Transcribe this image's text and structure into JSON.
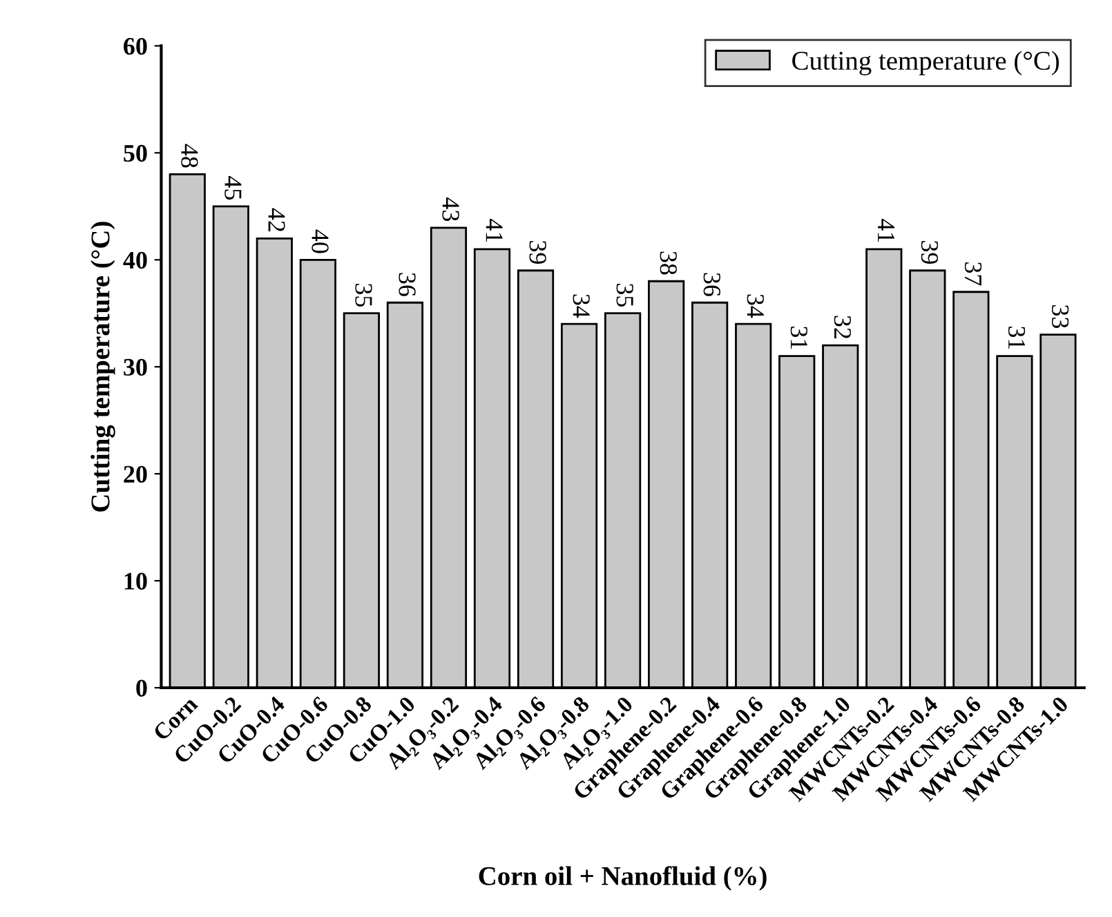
{
  "chart_data": {
    "type": "bar",
    "xlabel": "Corn oil + Nanofluid (%)",
    "ylabel": "Cutting temperature (°C)",
    "categories": [
      "Corn",
      "CuO-0.2",
      "CuO-0.4",
      "CuO-0.6",
      "CuO-0.8",
      "CuO-1.0",
      "Al₂O₃-0.2",
      "Al₂O₃-0.4",
      "Al₂O₃-0.6",
      "Al₂O₃-0.8",
      "Al₂O₃-1.0",
      "Graphene-0.2",
      "Graphene-0.4",
      "Graphene-0.6",
      "Graphene-0.8",
      "Graphene-1.0",
      "MWCNTs-0.2",
      "MWCNTs-0.4",
      "MWCNTs-0.6",
      "MWCNTs-0.8",
      "MWCNTs-1.0"
    ],
    "series": [
      {
        "name": "Cutting temperature (°C)",
        "color": "#c8c8c8",
        "values": [
          48,
          45,
          42,
          40,
          35,
          36,
          43,
          41,
          39,
          34,
          35,
          38,
          36,
          34,
          31,
          32,
          41,
          39,
          37,
          31,
          33
        ]
      }
    ],
    "ylim": [
      0,
      60
    ],
    "yticks": [
      0,
      10,
      20,
      30,
      40,
      50,
      60
    ],
    "grid": false,
    "legend": "top right",
    "data_labels": true
  }
}
